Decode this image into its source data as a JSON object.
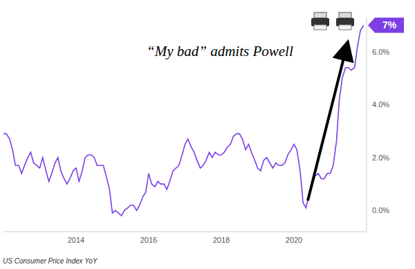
{
  "chart_data": {
    "type": "line",
    "annotations": [
      {
        "text": "“My bad” admits Powell"
      }
    ],
    "source": "US Consumer Price Index YoY",
    "end_label": {
      "value": 7,
      "label": "7%"
    },
    "color": "#7b3fe4",
    "grid": false,
    "x": [
      2012,
      2012.08,
      2012.17,
      2012.25,
      2012.33,
      2012.42,
      2012.5,
      2012.58,
      2012.67,
      2012.75,
      2012.83,
      2012.92,
      2013,
      2013.08,
      2013.17,
      2013.25,
      2013.33,
      2013.42,
      2013.5,
      2013.58,
      2013.67,
      2013.75,
      2013.83,
      2013.92,
      2014,
      2014.08,
      2014.17,
      2014.25,
      2014.33,
      2014.42,
      2014.5,
      2014.58,
      2014.67,
      2014.75,
      2014.83,
      2014.92,
      2015,
      2015.08,
      2015.17,
      2015.25,
      2015.33,
      2015.42,
      2015.5,
      2015.58,
      2015.67,
      2015.75,
      2015.83,
      2015.92,
      2016,
      2016.08,
      2016.17,
      2016.25,
      2016.33,
      2016.42,
      2016.5,
      2016.58,
      2016.67,
      2016.75,
      2016.83,
      2016.92,
      2017,
      2017.08,
      2017.17,
      2017.25,
      2017.33,
      2017.42,
      2017.5,
      2017.58,
      2017.67,
      2017.75,
      2017.83,
      2017.92,
      2018,
      2018.08,
      2018.17,
      2018.25,
      2018.33,
      2018.42,
      2018.5,
      2018.58,
      2018.67,
      2018.75,
      2018.83,
      2018.92,
      2019,
      2019.08,
      2019.17,
      2019.25,
      2019.33,
      2019.42,
      2019.5,
      2019.58,
      2019.67,
      2019.75,
      2019.83,
      2019.92,
      2020,
      2020.08,
      2020.17,
      2020.25,
      2020.33,
      2020.42,
      2020.5,
      2020.58,
      2020.67,
      2020.75,
      2020.83,
      2020.92,
      2021,
      2021.08,
      2021.17,
      2021.25,
      2021.33,
      2021.42,
      2021.5,
      2021.58,
      2021.67,
      2021.75,
      2021.83,
      2021.92
    ],
    "values": [
      2.9,
      2.9,
      2.7,
      2.3,
      1.7,
      1.7,
      1.4,
      1.7,
      2.0,
      2.2,
      1.8,
      1.7,
      1.6,
      2.0,
      1.5,
      1.1,
      1.4,
      1.8,
      2.0,
      1.5,
      1.2,
      1.0,
      1.2,
      1.5,
      1.6,
      1.1,
      1.5,
      2.0,
      2.1,
      2.1,
      2.0,
      1.7,
      1.7,
      1.7,
      1.3,
      0.8,
      -0.1,
      0.0,
      -0.1,
      -0.2,
      0.0,
      0.1,
      0.2,
      0.2,
      0.0,
      0.2,
      0.5,
      0.7,
      1.4,
      1.0,
      0.9,
      1.1,
      1.0,
      1.0,
      0.8,
      1.1,
      1.5,
      1.6,
      1.7,
      2.1,
      2.5,
      2.7,
      2.4,
      2.2,
      1.9,
      1.6,
      1.7,
      1.9,
      2.2,
      2.0,
      2.2,
      2.1,
      2.1,
      2.2,
      2.4,
      2.5,
      2.8,
      2.9,
      2.9,
      2.7,
      2.3,
      2.5,
      2.2,
      1.9,
      1.6,
      1.5,
      1.9,
      2.0,
      1.8,
      1.6,
      1.8,
      1.7,
      1.7,
      1.8,
      2.1,
      2.3,
      2.5,
      2.3,
      1.5,
      0.3,
      0.1,
      0.6,
      1.0,
      1.3,
      1.4,
      1.2,
      1.2,
      1.4,
      1.4,
      1.7,
      2.6,
      4.2,
      5.0,
      5.4,
      5.4,
      5.3,
      5.4,
      6.2,
      6.8,
      7.0
    ],
    "xlim": [
      2012,
      2022
    ],
    "xticks": [
      2014,
      2016,
      2018,
      2020
    ],
    "ylim": [
      -0.8,
      7.3
    ],
    "yticks": [
      {
        "value": 0,
        "label": "0.0%"
      },
      {
        "value": 2,
        "label": "2.0%"
      },
      {
        "value": 4,
        "label": "4.0%"
      },
      {
        "value": 6,
        "label": "6.0%"
      }
    ]
  }
}
